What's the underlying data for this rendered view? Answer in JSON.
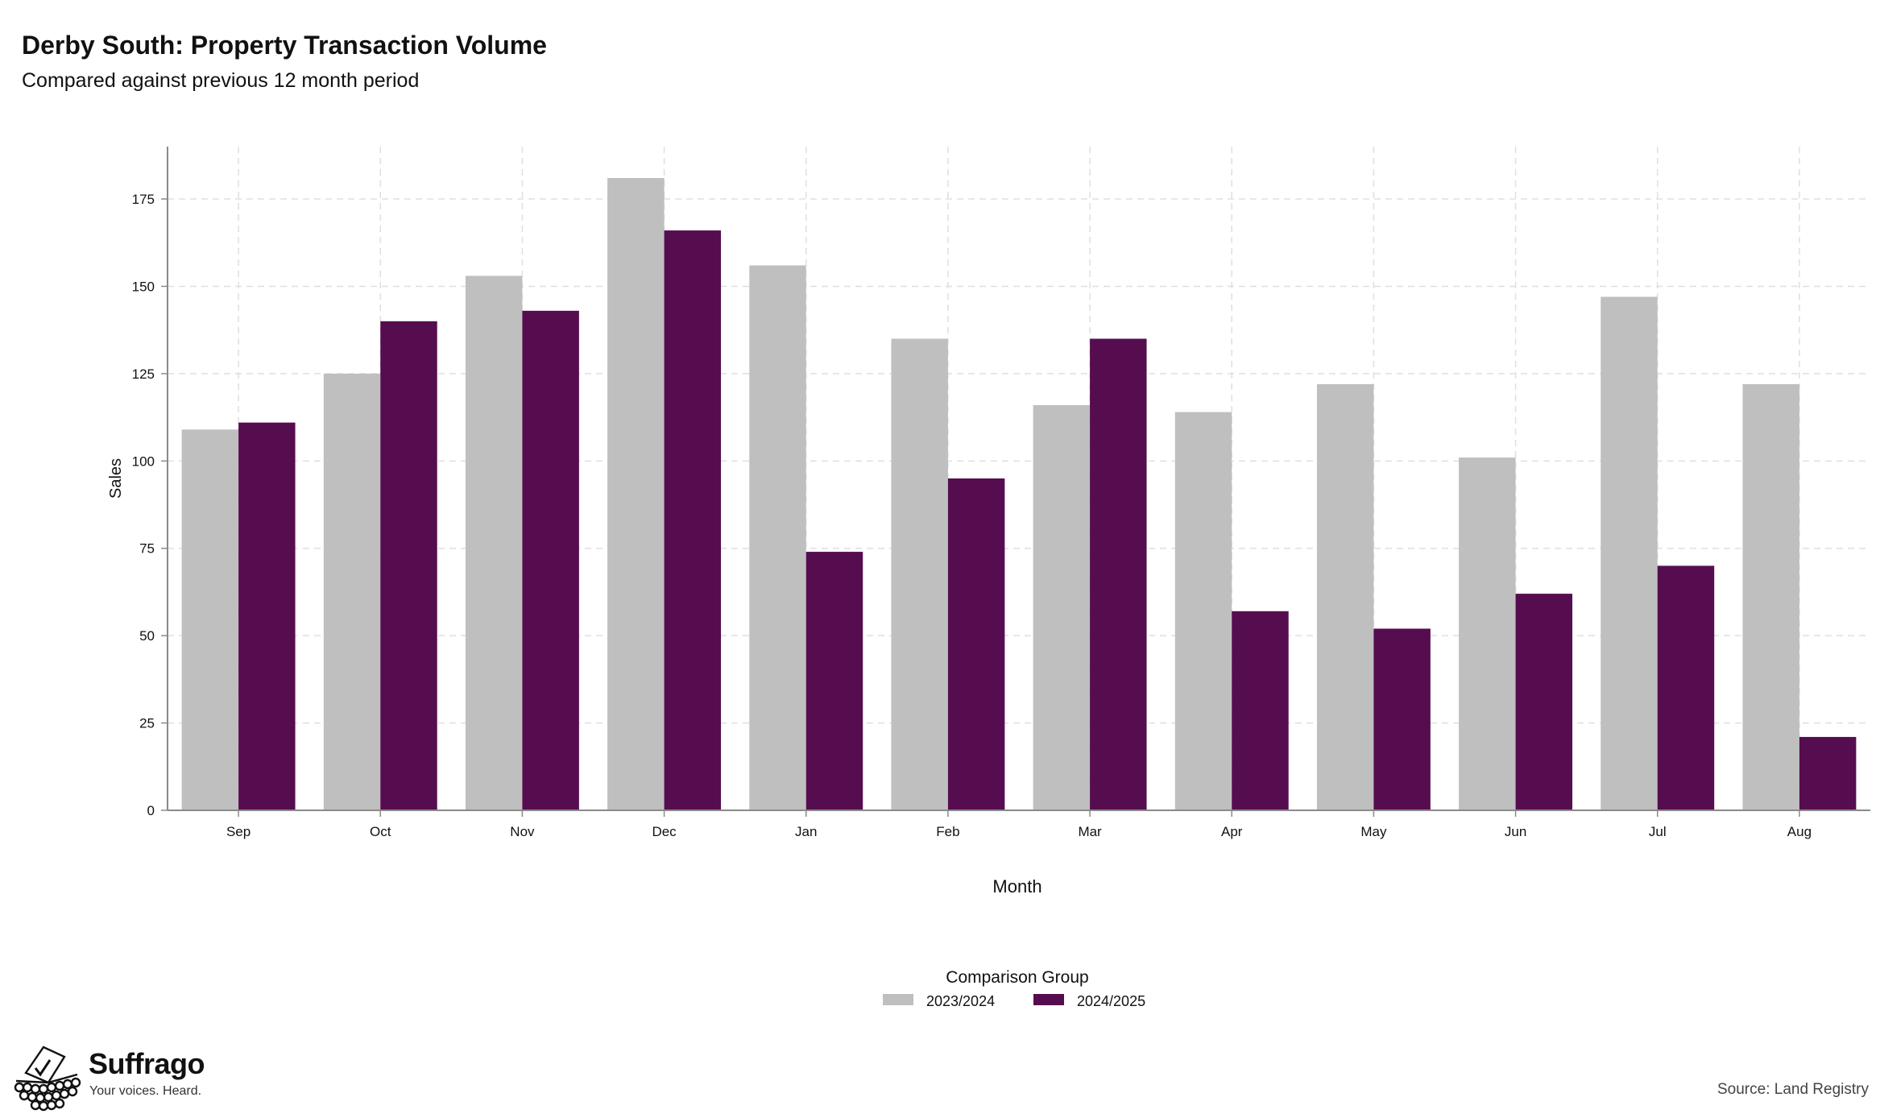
{
  "header": {
    "title": "Derby South: Property Transaction Volume",
    "subtitle": "Compared against previous 12 month period"
  },
  "colors": {
    "series_2023": "#bfbfbf",
    "series_2024": "#560d50",
    "grid": "#e2dde2",
    "axis": "#8a8a8a"
  },
  "chart_data": {
    "type": "bar",
    "categories": [
      "Sep",
      "Oct",
      "Nov",
      "Dec",
      "Jan",
      "Feb",
      "Mar",
      "Apr",
      "May",
      "Jun",
      "Jul",
      "Aug"
    ],
    "series": [
      {
        "name": "2023/2024",
        "color": "#bfbfbf",
        "values": [
          109,
          125,
          153,
          181,
          156,
          135,
          116,
          114,
          122,
          101,
          147,
          122
        ]
      },
      {
        "name": "2024/2025",
        "color": "#560d50",
        "values": [
          111,
          140,
          143,
          166,
          74,
          95,
          135,
          57,
          52,
          62,
          70,
          21
        ]
      }
    ],
    "xlabel": "Month",
    "ylabel": "Sales",
    "ylim": [
      0,
      190
    ],
    "yticks": [
      0,
      25,
      50,
      75,
      100,
      125,
      150,
      175
    ],
    "grid": true,
    "legend": {
      "title": "Comparison Group",
      "position": "bottom"
    }
  },
  "footer": {
    "brand_name": "Suffrago",
    "brand_tagline": "Your voices. Heard.",
    "source": "Source: Land Registry"
  }
}
